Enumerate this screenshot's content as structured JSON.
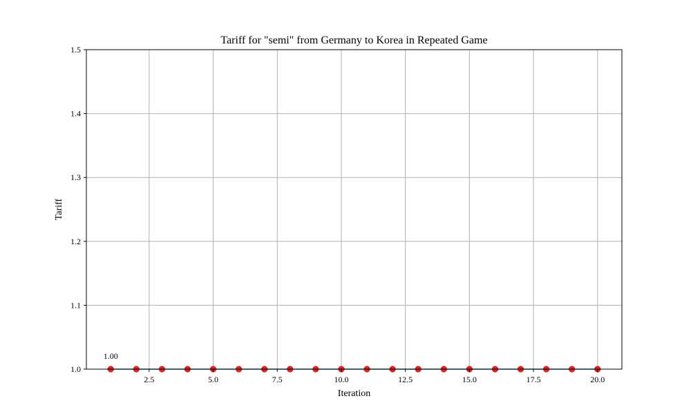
{
  "chart_data": {
    "type": "line",
    "title": "Tariff for \"semi\" from Germany to Korea in Repeated Game",
    "xlabel": "Iteration",
    "ylabel": "Tariff",
    "xlim": [
      0.05,
      20.95
    ],
    "ylim": [
      1.0,
      1.5
    ],
    "xticks": [
      2.5,
      5.0,
      7.5,
      10.0,
      12.5,
      15.0,
      17.5,
      20.0
    ],
    "xtick_labels": [
      "2.5",
      "5.0",
      "7.5",
      "10.0",
      "12.5",
      "15.0",
      "17.5",
      "20.0"
    ],
    "yticks": [
      1.0,
      1.1,
      1.2,
      1.3,
      1.4,
      1.5
    ],
    "ytick_labels": [
      "1.0",
      "1.1",
      "1.2",
      "1.3",
      "1.4",
      "1.5"
    ],
    "grid": true,
    "colors": {
      "line": "#1f77b4",
      "marker": "#d62728",
      "grid": "#b0b0b0"
    },
    "x": [
      1,
      2,
      3,
      4,
      5,
      6,
      7,
      8,
      9,
      10,
      11,
      12,
      13,
      14,
      15,
      16,
      17,
      18,
      19,
      20
    ],
    "series": [
      {
        "values": [
          1.0,
          1.0,
          1.0,
          1.0,
          1.0,
          1.0,
          1.0,
          1.0,
          1.0,
          1.0,
          1.0,
          1.0,
          1.0,
          1.0,
          1.0,
          1.0,
          1.0,
          1.0,
          1.0,
          1.0
        ]
      }
    ],
    "annotations": [
      {
        "x": 1,
        "y": 1.0,
        "text": "1.00"
      }
    ]
  }
}
